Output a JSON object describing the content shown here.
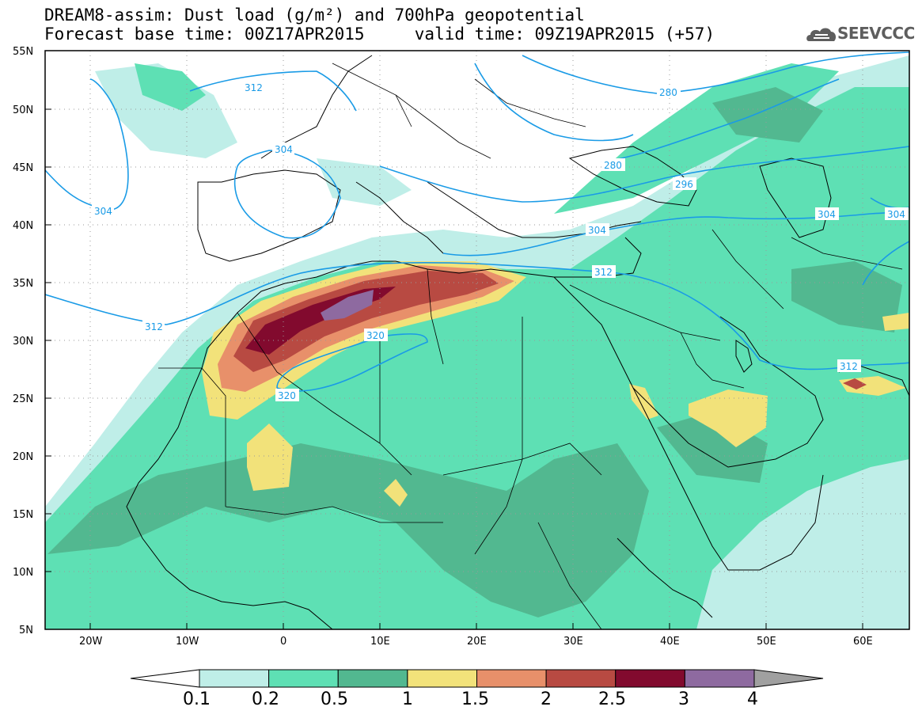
{
  "header": {
    "title_line1": "DREAM8-assim: Dust load (g/m²) and 700hPa geopotential",
    "title_line2": "Forecast base time: 00Z17APR2015     valid time: 09Z19APR2015 (+57)",
    "logo_text": "SEEVCCC"
  },
  "axes": {
    "lat_labels": [
      "55N",
      "50N",
      "45N",
      "40N",
      "35N",
      "30N",
      "25N",
      "20N",
      "15N",
      "10N",
      "5N"
    ],
    "lon_labels": [
      "20W",
      "10W",
      "0",
      "10E",
      "20E",
      "30E",
      "40E",
      "50E",
      "60E"
    ]
  },
  "contour_labels": [
    "312",
    "304",
    "304",
    "280",
    "280",
    "296",
    "304",
    "304",
    "304",
    "312",
    "312",
    "320",
    "320",
    "312"
  ],
  "colorbar": {
    "labels": [
      "0.1",
      "0.2",
      "0.5",
      "1",
      "1.5",
      "2",
      "2.5",
      "3",
      "4"
    ],
    "colors": [
      "#ffffff",
      "#bfeee8",
      "#5ee0b4",
      "#52b890",
      "#f2e27a",
      "#e8906a",
      "#b84a42",
      "#820a2e",
      "#8e6aa0",
      "#a0a0a0"
    ]
  },
  "colors": {
    "land": "#ffffff",
    "geopotential_contour": "#1a9be6",
    "coast_border": "#000000"
  }
}
